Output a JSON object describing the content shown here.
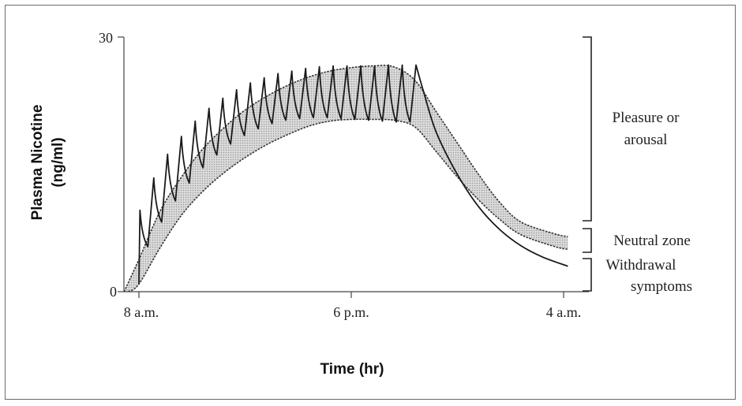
{
  "chart_data": {
    "type": "line",
    "title": "",
    "xlabel": "Time (hr)",
    "ylabel_line1": "Plasma Nicotine",
    "ylabel_line2": "(ng/ml)",
    "ylim": [
      0,
      30
    ],
    "y_ticks": [
      "30",
      "0"
    ],
    "x_ticks": [
      "8 a.m.",
      "6 p.m.",
      "4 a.m."
    ],
    "x_tick_hours": [
      0,
      10,
      20
    ],
    "grid": false,
    "zones": [
      {
        "label_lines": [
          "Pleasure or",
          "arousal"
        ],
        "range": [
          8.3,
          30
        ]
      },
      {
        "label_lines": [
          "Neutral zone"
        ],
        "range": [
          4.5,
          7.3
        ]
      },
      {
        "label_lines": [
          "Withdrawal",
          "symptoms"
        ],
        "range": [
          0,
          3.8
        ]
      }
    ],
    "series": [
      {
        "values_upper": [
          [
            -0.7,
            0
          ],
          [
            0,
            3.8
          ],
          [
            1,
            9.5
          ],
          [
            2,
            13.5
          ],
          [
            3,
            16.8
          ],
          [
            4,
            19.3
          ],
          [
            5,
            21.4
          ],
          [
            6,
            23.0
          ],
          [
            7,
            24.3
          ],
          [
            8,
            25.3
          ],
          [
            9,
            26.0
          ],
          [
            10,
            26.4
          ],
          [
            11,
            26.6
          ],
          [
            12,
            26.5
          ],
          [
            13,
            24.9
          ],
          [
            14,
            21.2
          ],
          [
            15,
            17.5
          ],
          [
            16,
            13.8
          ],
          [
            17,
            10.5
          ],
          [
            18,
            8.2
          ],
          [
            19.6,
            6.8
          ],
          [
            20.2,
            6.5
          ]
        ],
        "values_lower": [
          [
            -0.5,
            0
          ],
          [
            0,
            0.9
          ],
          [
            1,
            5.2
          ],
          [
            2,
            9.0
          ],
          [
            3,
            11.8
          ],
          [
            4,
            14.0
          ],
          [
            5,
            15.8
          ],
          [
            6,
            17.3
          ],
          [
            7,
            18.5
          ],
          [
            8,
            19.5
          ],
          [
            9,
            20.1
          ],
          [
            10,
            20.3
          ],
          [
            11,
            20.3
          ],
          [
            12,
            20.2
          ],
          [
            13,
            19.4
          ],
          [
            14,
            16.5
          ],
          [
            15,
            13.5
          ],
          [
            16,
            10.8
          ],
          [
            17,
            8.5
          ],
          [
            18,
            6.7
          ],
          [
            19.6,
            5.3
          ],
          [
            20.2,
            5.0
          ]
        ]
      },
      {
        "smoking_peaks": [
          [
            0.05,
            9.6
          ],
          [
            0.7,
            13.4
          ],
          [
            1.35,
            16.2
          ],
          [
            2.0,
            18.3
          ],
          [
            2.65,
            20.1
          ],
          [
            3.3,
            21.6
          ],
          [
            3.95,
            22.8
          ],
          [
            4.6,
            23.8
          ],
          [
            5.25,
            24.6
          ],
          [
            5.9,
            25.2
          ],
          [
            6.55,
            25.7
          ],
          [
            7.2,
            26.0
          ],
          [
            7.85,
            26.3
          ],
          [
            8.5,
            26.5
          ],
          [
            9.15,
            26.6
          ],
          [
            9.8,
            26.6
          ],
          [
            10.45,
            26.6
          ],
          [
            11.1,
            26.6
          ],
          [
            11.75,
            26.7
          ],
          [
            12.4,
            26.7
          ],
          [
            13.05,
            26.7
          ]
        ],
        "smoking_troughs": [
          [
            0,
            0.9
          ],
          [
            0.42,
            5.3
          ],
          [
            1.07,
            8.2
          ],
          [
            1.72,
            10.7
          ],
          [
            2.37,
            12.8
          ],
          [
            3.02,
            14.6
          ],
          [
            3.67,
            16.1
          ],
          [
            4.32,
            17.4
          ],
          [
            4.97,
            18.4
          ],
          [
            5.62,
            19.2
          ],
          [
            6.27,
            19.8
          ],
          [
            6.92,
            20.2
          ],
          [
            7.57,
            20.4
          ],
          [
            8.22,
            20.5
          ],
          [
            8.87,
            20.5
          ],
          [
            9.52,
            20.4
          ],
          [
            10.17,
            20.3
          ],
          [
            10.82,
            20.2
          ],
          [
            11.47,
            20.1
          ],
          [
            12.12,
            20.0
          ],
          [
            12.77,
            20.0
          ]
        ],
        "decay": [
          [
            13.05,
            26.7
          ],
          [
            13.4,
            23.6
          ],
          [
            14,
            18.8
          ],
          [
            15,
            13.8
          ],
          [
            16,
            10.0
          ],
          [
            17,
            7.3
          ],
          [
            18,
            5.4
          ],
          [
            19,
            4.1
          ],
          [
            20.2,
            3.0
          ]
        ]
      }
    ]
  }
}
